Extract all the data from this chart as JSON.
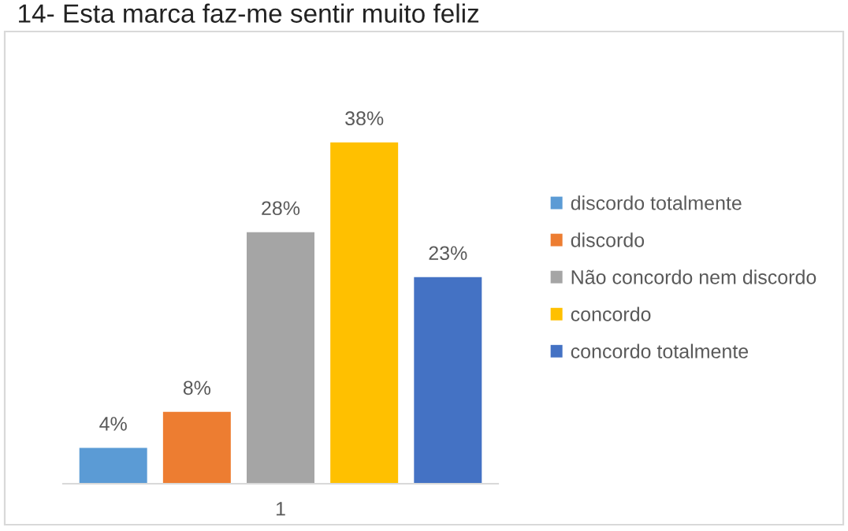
{
  "chart_data": {
    "type": "bar",
    "title": "14- Esta marca faz-me sentir muito feliz",
    "categories": [
      null,
      null,
      "1",
      null,
      null
    ],
    "stacked": true,
    "series": [
      {
        "name": "discordo totalmente",
        "color": "#5b9bd5",
        "values": [
          4,
          null,
          null,
          null,
          null
        ],
        "value_labels": [
          "4%",
          null,
          null,
          null,
          null
        ]
      },
      {
        "name": "discordo",
        "color": "#ed7d31",
        "values": [
          null,
          8,
          null,
          null,
          null
        ],
        "value_labels": [
          null,
          "8%",
          null,
          null,
          null
        ]
      },
      {
        "name": "Não concordo nem discordo",
        "color": "#a5a5a5",
        "values": [
          null,
          null,
          28,
          null,
          null
        ],
        "value_labels": [
          null,
          null,
          "28%",
          null,
          null
        ]
      },
      {
        "name": "concordo",
        "color": "#ffc000",
        "values": [
          null,
          null,
          null,
          38,
          null
        ],
        "value_labels": [
          null,
          null,
          null,
          "38%",
          null
        ]
      },
      {
        "name": "concordo totalmente",
        "color": "#4472c4",
        "values": [
          null,
          null,
          null,
          null,
          23
        ],
        "value_labels": [
          null,
          null,
          null,
          null,
          "23%"
        ]
      }
    ],
    "legend": "right",
    "grid": false
  }
}
